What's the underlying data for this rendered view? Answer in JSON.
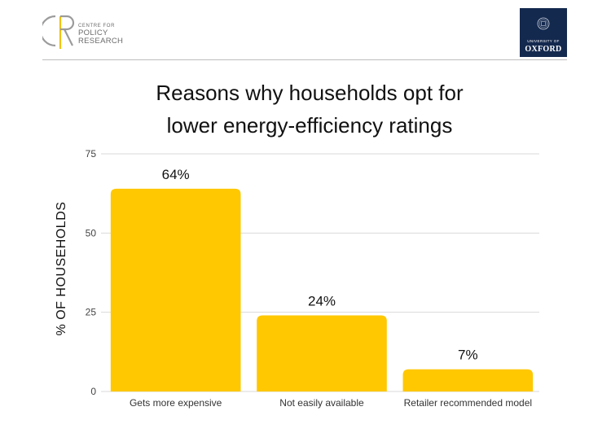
{
  "header": {
    "cpr_logo": {
      "line1": "CENTRE FOR",
      "line2": "POLICY",
      "line3": "RESEARCH"
    },
    "oxford_logo": {
      "line1": "UNIVERSITY OF",
      "line2": "OXFORD"
    }
  },
  "colors": {
    "bar": "#FFC800",
    "grid": "#d9d9d9",
    "text": "#111111",
    "oxford_blue": "#14294e"
  },
  "chart_data": {
    "type": "bar",
    "title_lines": [
      "Reasons why households opt for",
      "lower energy-efficiency ratings"
    ],
    "ylabel": "% OF HOUSEHOLDS",
    "xlabel": "",
    "categories": [
      "Gets more expensive",
      "Not easily available",
      "Retailer recommended model"
    ],
    "values": [
      64,
      24,
      7
    ],
    "data_labels": [
      "64%",
      "24%",
      "7%"
    ],
    "yticks": [
      0,
      25,
      50,
      75
    ],
    "ylim": [
      0,
      75
    ],
    "grid": true
  }
}
